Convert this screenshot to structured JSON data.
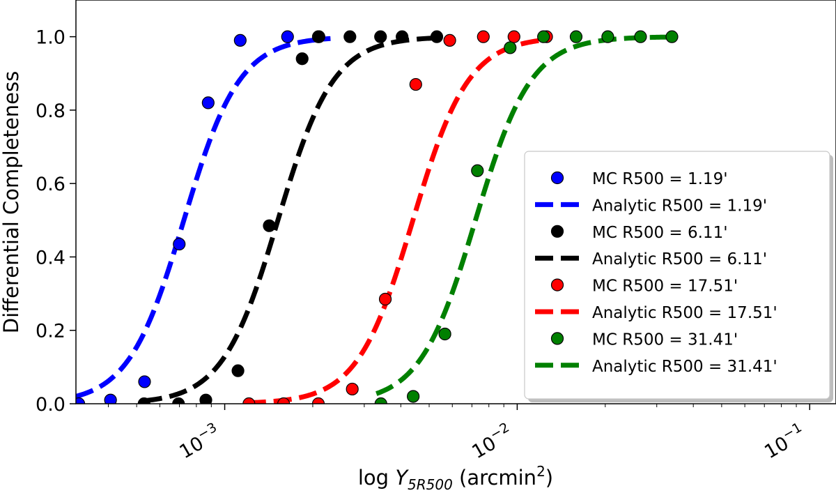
{
  "chart_data": {
    "type": "line",
    "title": "",
    "xlabel_prefix": "log ",
    "xlabel_var": "Y",
    "xlabel_sub": "5R500",
    "xlabel_unit_open": " (arcmin",
    "xlabel_unit_sup": "2",
    "xlabel_unit_close": ")",
    "ylabel": "Differential Completeness",
    "xscale": "log",
    "xlim": [
      0.00031,
      0.123
    ],
    "ylim": [
      0.0,
      1.1
    ],
    "yticks": [
      {
        "v": 0.0,
        "label": "0.0"
      },
      {
        "v": 0.2,
        "label": "0.2"
      },
      {
        "v": 0.4,
        "label": "0.4"
      },
      {
        "v": 0.6,
        "label": "0.6"
      },
      {
        "v": 0.8,
        "label": "0.8"
      },
      {
        "v": 1.0,
        "label": "1.0"
      }
    ],
    "xticks": [
      {
        "v": 0.001,
        "base": "10",
        "exp": "−3"
      },
      {
        "v": 0.01,
        "base": "10",
        "exp": "−2"
      },
      {
        "v": 0.1,
        "base": "10",
        "exp": "−1"
      }
    ],
    "legend_position": "center-right",
    "series": [
      {
        "color": "#0000ff",
        "mc_label": "MC R500 = 1.19'",
        "analytic_label": "Analytic R500 = 1.19'",
        "x0": 0.000725,
        "width": 0.095,
        "curve_range": [
          0.00031,
          0.0023
        ],
        "points": [
          [
            0.000317,
            0.0
          ],
          [
            0.000407,
            0.01
          ],
          [
            0.000532,
            0.06
          ],
          [
            0.000699,
            0.435
          ],
          [
            0.000878,
            0.82
          ],
          [
            0.00113,
            0.99
          ],
          [
            0.00164,
            1.0
          ],
          [
            0.0021,
            1.0
          ]
        ]
      },
      {
        "color": "#000000",
        "mc_label": "MC R500 = 6.11'",
        "analytic_label": "Analytic R500 = 6.11'",
        "x0": 0.00152,
        "width": 0.095,
        "curve_range": [
          0.00053,
          0.0053
        ],
        "points": [
          [
            0.00053,
            0.0
          ],
          [
            0.000695,
            0.0
          ],
          [
            0.000862,
            0.01
          ],
          [
            0.00111,
            0.09
          ],
          [
            0.00142,
            0.485
          ],
          [
            0.00184,
            0.94
          ],
          [
            0.00209,
            1.0
          ],
          [
            0.00268,
            1.0
          ],
          [
            0.00341,
            1.0
          ],
          [
            0.00404,
            1.0
          ],
          [
            0.00531,
            1.0
          ]
        ]
      },
      {
        "color": "#ff0000",
        "mc_label": "MC R500 = 17.51'",
        "analytic_label": "Analytic R500 = 17.51'",
        "x0": 0.0044,
        "width": 0.095,
        "curve_range": [
          0.0012,
          0.0125
        ],
        "points": [
          [
            0.00121,
            0.0
          ],
          [
            0.00159,
            0.0
          ],
          [
            0.00209,
            0.0
          ],
          [
            0.00273,
            0.04
          ],
          [
            0.00354,
            0.285
          ],
          [
            0.0045,
            0.87
          ],
          [
            0.00588,
            0.99
          ],
          [
            0.00766,
            1.0
          ],
          [
            0.00975,
            1.0
          ],
          [
            0.0126,
            1.0
          ]
        ]
      },
      {
        "color": "#008000",
        "mc_label": "MC R500 = 31.41'",
        "analytic_label": "Analytic R500 = 31.41'",
        "x0": 0.0072,
        "width": 0.095,
        "curve_range": [
          0.0033,
          0.034
        ],
        "points": [
          [
            0.00342,
            0.0
          ],
          [
            0.00441,
            0.02
          ],
          [
            0.00566,
            0.19
          ],
          [
            0.00731,
            0.635
          ],
          [
            0.00946,
            0.97
          ],
          [
            0.0123,
            1.0
          ],
          [
            0.0159,
            1.0
          ],
          [
            0.0204,
            1.0
          ],
          [
            0.0264,
            1.0
          ],
          [
            0.0338,
            1.0
          ]
        ]
      }
    ]
  }
}
